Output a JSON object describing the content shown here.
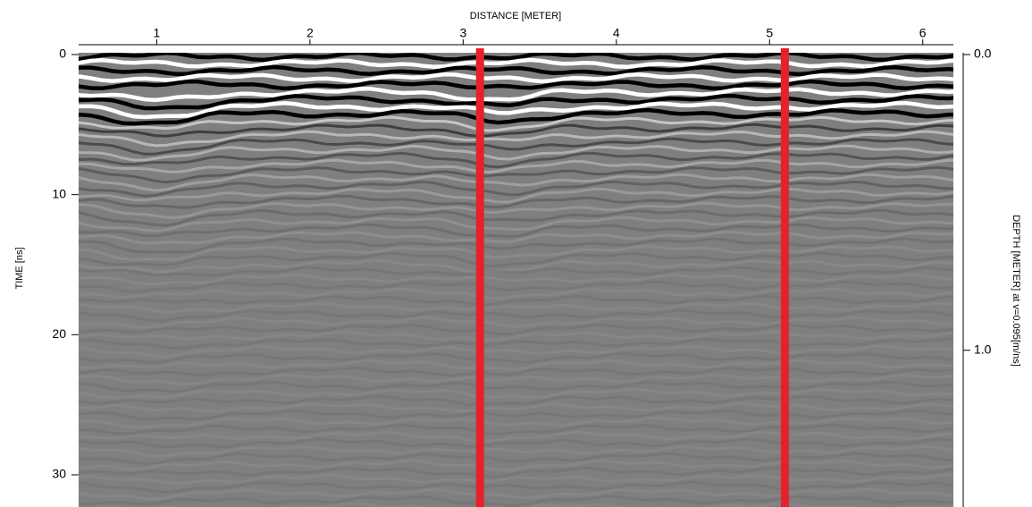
{
  "chart_data": {
    "type": "radargram",
    "x_label": "DISTANCE [METER]",
    "y_label": "TIME [ns]",
    "y2_label": "DEPTH [METER] at v=0.095[m/ns]",
    "xlim": [
      0.49,
      6.2
    ],
    "xticks": [
      1,
      2,
      3,
      4,
      5,
      6
    ],
    "ylim": [
      0,
      32.3
    ],
    "yticks": [
      0,
      10,
      20,
      30
    ],
    "y2lim": [
      0,
      1.53
    ],
    "y2ticks": [
      {
        "value": 0,
        "label": "0.0"
      },
      {
        "value": 1,
        "label": "1.0"
      }
    ],
    "markers": {
      "x": [
        3.11,
        5.1
      ],
      "color": "#e8202a"
    }
  }
}
